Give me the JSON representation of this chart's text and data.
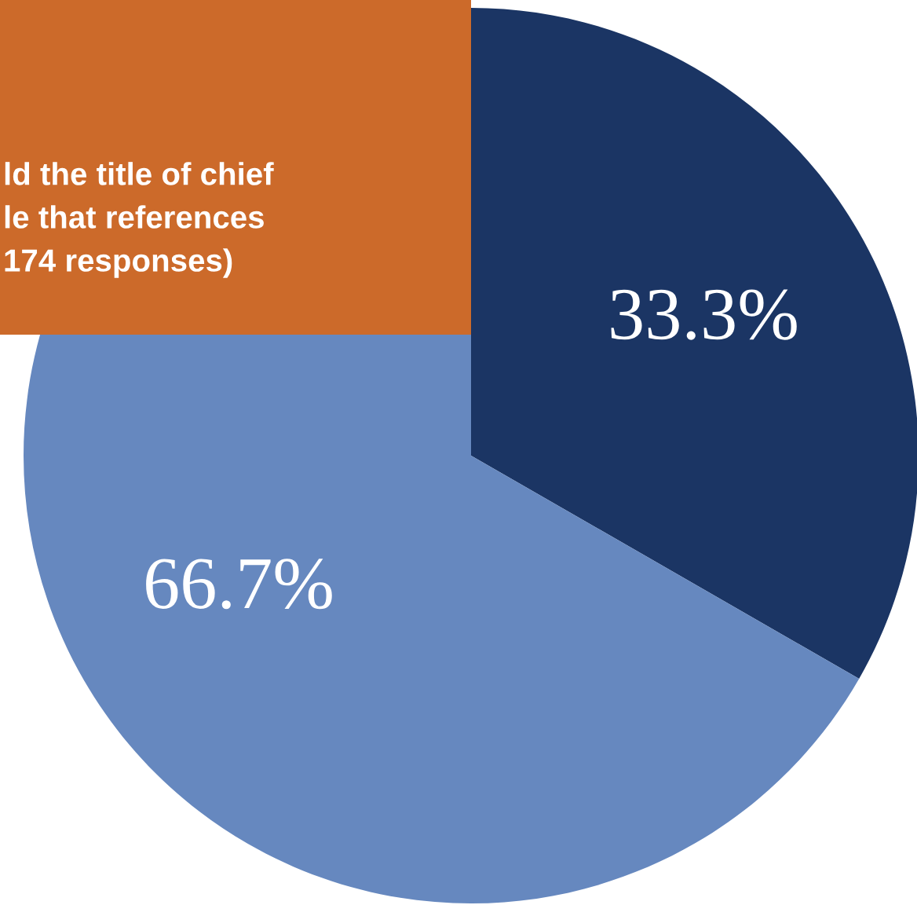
{
  "chart_data": {
    "type": "pie",
    "categories": [
      null,
      null
    ],
    "values": [
      33.3,
      66.7
    ],
    "colors": [
      "#1b3564",
      "#6688bf"
    ],
    "value_labels": [
      "33.3%",
      "66.7%"
    ],
    "annotations": [
      "ld the title of chief\nle that references\n174 responses)"
    ],
    "legend": false
  }
}
